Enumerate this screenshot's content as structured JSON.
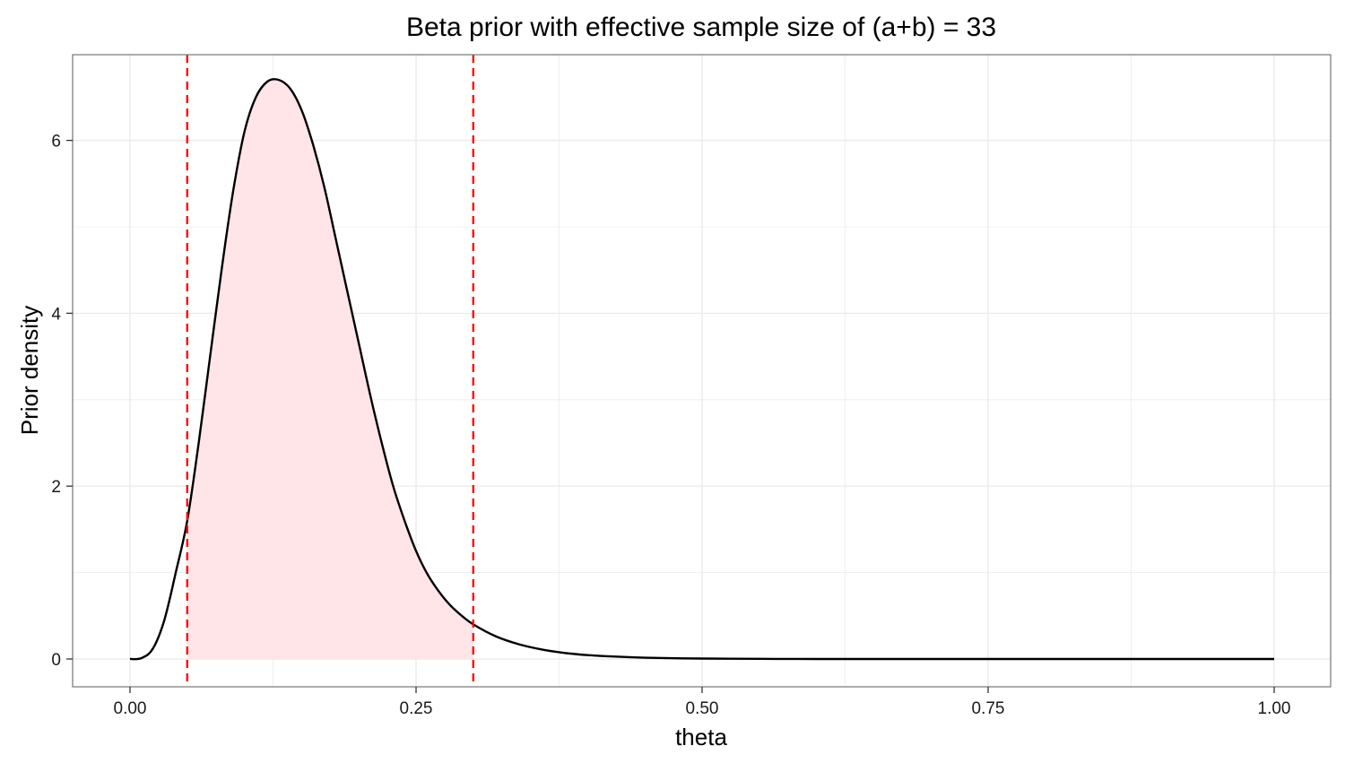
{
  "chart_data": {
    "type": "area",
    "title": "Beta prior with effective sample size of (a+b) = 33",
    "xlabel": "theta",
    "ylabel": "Prior density",
    "xlim": [
      0,
      1
    ],
    "ylim": [
      -0.3,
      7.0
    ],
    "x_ticks": [
      0,
      0.25,
      0.5,
      0.75,
      1
    ],
    "x_tick_labels": [
      "0.00",
      "0.25",
      "0.50",
      "0.75",
      "1.00"
    ],
    "y_ticks": [
      0,
      2,
      4,
      6
    ],
    "y_tick_labels": [
      "0",
      "2",
      "4",
      "6"
    ],
    "grid": true,
    "legend": "none",
    "series": [
      {
        "type": "line",
        "x": [
          0,
          0.01,
          0.02,
          0.03,
          0.04,
          0.05,
          0.06,
          0.07,
          0.08,
          0.09,
          0.1,
          0.11,
          0.12,
          0.13,
          0.14,
          0.15,
          0.16,
          0.17,
          0.18,
          0.19,
          0.2,
          0.21,
          0.22,
          0.23,
          0.24,
          0.25,
          0.26,
          0.27,
          0.28,
          0.29,
          0.3,
          0.32,
          0.34,
          0.36,
          0.38,
          0.4,
          0.42,
          0.45,
          0.5,
          0.55,
          0.6,
          0.7,
          0.8,
          0.9,
          1.0
        ],
        "y": [
          0,
          0.01,
          0.12,
          0.45,
          1.0,
          1.6,
          2.5,
          3.5,
          4.5,
          5.4,
          6.1,
          6.5,
          6.68,
          6.7,
          6.6,
          6.35,
          5.95,
          5.45,
          4.85,
          4.25,
          3.65,
          3.05,
          2.5,
          2.0,
          1.6,
          1.25,
          0.98,
          0.78,
          0.62,
          0.5,
          0.4,
          0.26,
          0.17,
          0.11,
          0.07,
          0.045,
          0.03,
          0.015,
          0.005,
          0.002,
          0,
          0,
          0,
          0,
          0
        ],
        "color": "#000000"
      }
    ],
    "shaded_region": {
      "from": 0.05,
      "to": 0.3,
      "color": "#ffe4e8"
    },
    "vlines": [
      {
        "x": 0.05,
        "color": "#ff0000",
        "style": "dashed"
      },
      {
        "x": 0.3,
        "color": "#ff0000",
        "style": "dashed"
      }
    ],
    "colors": {
      "panel_border": "#7f7f7f",
      "grid": "#ebebeb",
      "curve": "#000000",
      "fill": "#ffe4e8",
      "vline": "#ff0000"
    }
  }
}
